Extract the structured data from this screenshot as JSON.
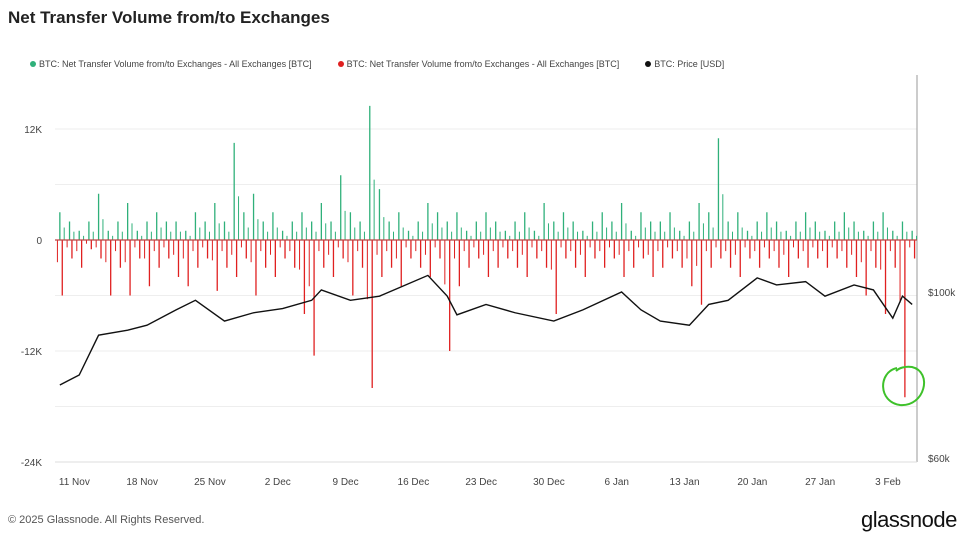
{
  "title": "Net Transfer Volume from/to Exchanges",
  "copyright": "© 2025 Glassnode. All Rights Reserved.",
  "logo": "glassnode",
  "colors": {
    "inflow": "#2fb07a",
    "outflow": "#e02020",
    "price": "#111111",
    "annotation": "#3ec12a"
  },
  "chart_data": {
    "type": "bar",
    "title": "Net Transfer Volume from/to Exchanges",
    "legend": [
      {
        "label": "BTC: Net Transfer Volume from/to Exchanges - All Exchanges [BTC]",
        "color": "#2fb07a"
      },
      {
        "label": "BTC: Net Transfer Volume from/to Exchanges - All Exchanges [BTC]",
        "color": "#e02020"
      },
      {
        "label": "BTC: Price [USD]",
        "color": "#111111"
      }
    ],
    "legend_placement": "top-left",
    "start_date": "2024-11-09",
    "x_ticks": [
      "11 Nov",
      "18 Nov",
      "25 Nov",
      "2 Dec",
      "9 Dec",
      "16 Dec",
      "23 Dec",
      "30 Dec",
      "6 Jan",
      "13 Jan",
      "20 Jan",
      "27 Jan",
      "3 Feb"
    ],
    "x_tick_days": [
      2,
      9,
      16,
      23,
      30,
      37,
      44,
      51,
      58,
      65,
      72,
      79,
      86
    ],
    "y_left": {
      "ticks": [
        12000,
        0,
        -12000,
        -24000
      ],
      "tick_labels": [
        "12K",
        "0",
        "-12K",
        "-24K"
      ],
      "range": [
        -24000,
        12000
      ]
    },
    "y_right": {
      "ticks": [
        100000,
        60000
      ],
      "tick_labels": [
        "$100k",
        "$60k"
      ],
      "range": [
        60000,
        100000
      ]
    },
    "inflow_daily": [
      3,
      2,
      1,
      2,
      5,
      1,
      2,
      4,
      1,
      2,
      3,
      2,
      2,
      1,
      3,
      2,
      4,
      2,
      10.5,
      3,
      5,
      2,
      3,
      1,
      2,
      3,
      2,
      4,
      2,
      7,
      3,
      2,
      14.5,
      5.5,
      2,
      3,
      1,
      2,
      4,
      3,
      2,
      3,
      1,
      2,
      3,
      2,
      1,
      2,
      3,
      1,
      4,
      2,
      3,
      2,
      1,
      2,
      3,
      2,
      4,
      1,
      3,
      2,
      2,
      3,
      1,
      2,
      4,
      3,
      11,
      2,
      3,
      1,
      2,
      3,
      2,
      1,
      2,
      3,
      2,
      1,
      2,
      3,
      2,
      1,
      2,
      3,
      1,
      2,
      1
    ],
    "outflow_daily": [
      -6,
      -2,
      -3,
      -1,
      -2,
      -6,
      -3,
      -6,
      -2,
      -5,
      -3,
      -2,
      -4,
      -5,
      -3,
      -2,
      -5.5,
      -3,
      -4,
      -2,
      -6,
      -3,
      -4,
      -2,
      -3,
      -8,
      -12.5,
      -3,
      -4,
      -2,
      -6,
      -3,
      -16,
      -4,
      -3,
      -5,
      -2,
      -3,
      -4,
      -2,
      -12,
      -5,
      -3,
      -2,
      -4,
      -3,
      -2,
      -3,
      -4,
      -2,
      -3,
      -8,
      -2,
      -3,
      -4,
      -2,
      -3,
      -2,
      -4,
      -3,
      -2,
      -4,
      -3,
      -2,
      -3,
      -5,
      -7,
      -3,
      -2,
      -3,
      -4,
      -2,
      -3,
      -2,
      -3,
      -4,
      -2,
      -3,
      -2,
      -3,
      -2,
      -3,
      -4,
      -6,
      -3,
      -8,
      -3,
      -17,
      -2
    ],
    "price_points": [
      [
        0,
        77600
      ],
      [
        2,
        80000
      ],
      [
        4,
        89600
      ],
      [
        7,
        90800
      ],
      [
        9,
        92000
      ],
      [
        12,
        95700
      ],
      [
        14,
        98000
      ],
      [
        17,
        93000
      ],
      [
        20,
        95000
      ],
      [
        23,
        96000
      ],
      [
        26,
        98000
      ],
      [
        27,
        100500
      ],
      [
        30,
        98000
      ],
      [
        33,
        99000
      ],
      [
        35,
        101000
      ],
      [
        38,
        104000
      ],
      [
        40,
        99000
      ],
      [
        41,
        94500
      ],
      [
        44,
        97000
      ],
      [
        47,
        95000
      ],
      [
        51,
        93000
      ],
      [
        54,
        95700
      ],
      [
        58,
        100000
      ],
      [
        60,
        95700
      ],
      [
        62,
        93000
      ],
      [
        65,
        92000
      ],
      [
        67,
        97000
      ],
      [
        69,
        98000
      ],
      [
        72,
        103400
      ],
      [
        74,
        101700
      ],
      [
        77,
        102500
      ],
      [
        79,
        99000
      ],
      [
        82,
        101700
      ],
      [
        84,
        100500
      ],
      [
        86,
        93700
      ],
      [
        87,
        99000
      ],
      [
        88,
        97000
      ]
    ]
  }
}
